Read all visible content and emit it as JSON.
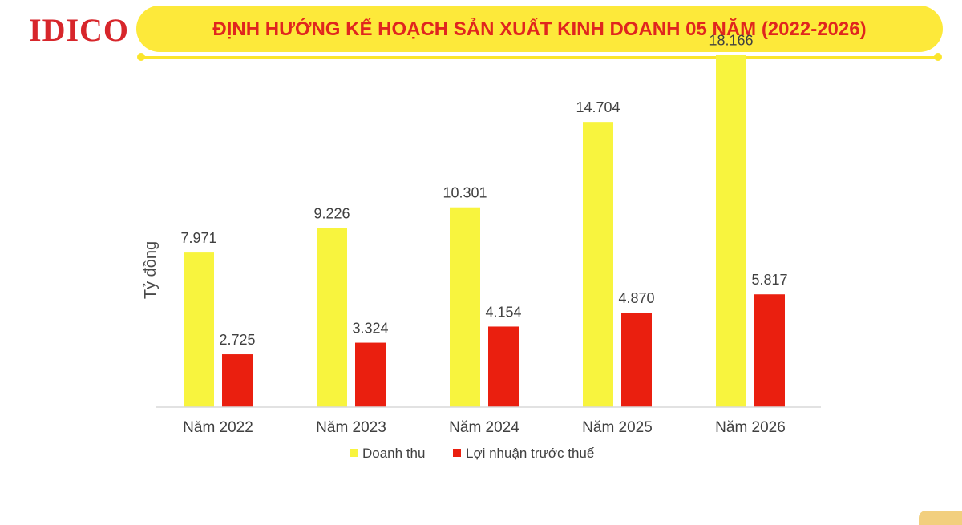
{
  "header": {
    "logo": "IDICO",
    "title": "ĐỊNH HƯỚNG KẾ HOẠCH SẢN XUẤT KINH DOANH 05 NĂM (2022-2026)"
  },
  "colors": {
    "title_bg": "#fde93a",
    "title_text": "#e0261e",
    "logo": "#d7262b",
    "revenue": "#f8f43e",
    "profit": "#ea1f0f"
  },
  "chart_data": {
    "type": "bar",
    "title": "",
    "xlabel": "",
    "ylabel": "Tỷ đồng",
    "categories": [
      "Năm 2022",
      "Năm 2023",
      "Năm 2024",
      "Năm 2025",
      "Năm 2026"
    ],
    "series": [
      {
        "name": "Doanh thu",
        "color": "#f8f43e",
        "values": [
          7971,
          9226,
          10301,
          14704,
          18166
        ],
        "labels": [
          "7.971",
          "9.226",
          "10.301",
          "14.704",
          "18.166"
        ]
      },
      {
        "name": "Lợi nhuận trước thuế",
        "color": "#ea1f0f",
        "values": [
          2725,
          3324,
          4154,
          4870,
          5817
        ],
        "labels": [
          "2.725",
          "3.324",
          "4.154",
          "4.870",
          "5.817"
        ]
      }
    ],
    "ylim": [
      0,
      20000
    ],
    "grid": false,
    "legend_position": "bottom"
  }
}
